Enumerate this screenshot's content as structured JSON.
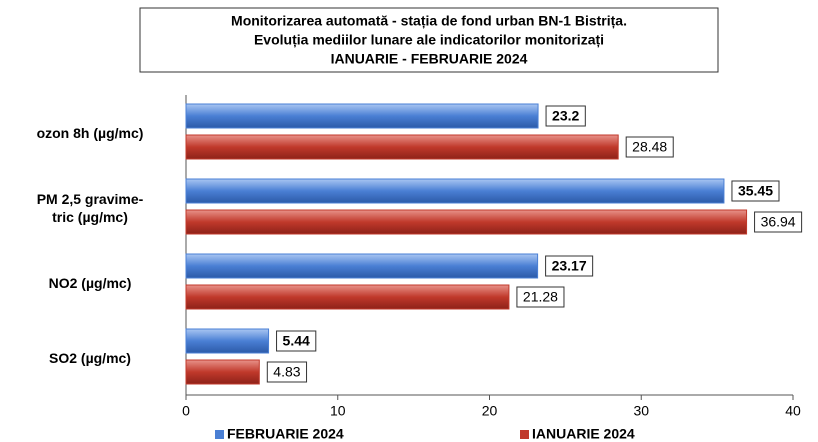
{
  "chart_data": {
    "type": "hbar",
    "title": [
      "Monitorizarea automată  - stația de fond urban BN-1 Bistrița.",
      "Evoluția mediilor lunare ale indicatorilor monitorizați",
      "IANUARIE - FEBRUARIE 2024"
    ],
    "categories": [
      "ozon 8h (µg/mc)",
      "PM 2,5 gravime-\ntric (µg/mc)",
      "NO2 (µg/mc)",
      "SO2 (µg/mc)"
    ],
    "series": [
      {
        "name": "FEBRUARIE 2024",
        "color": "#4a7fd4",
        "values": [
          23.2,
          35.45,
          23.17,
          5.44
        ]
      },
      {
        "name": "IANUARIE 2024",
        "color": "#c0392b",
        "values": [
          28.48,
          36.94,
          21.28,
          4.83
        ]
      }
    ],
    "xlim": [
      0,
      40
    ],
    "xticks": [
      0,
      10,
      20,
      30,
      40
    ],
    "legend": "bottom"
  }
}
